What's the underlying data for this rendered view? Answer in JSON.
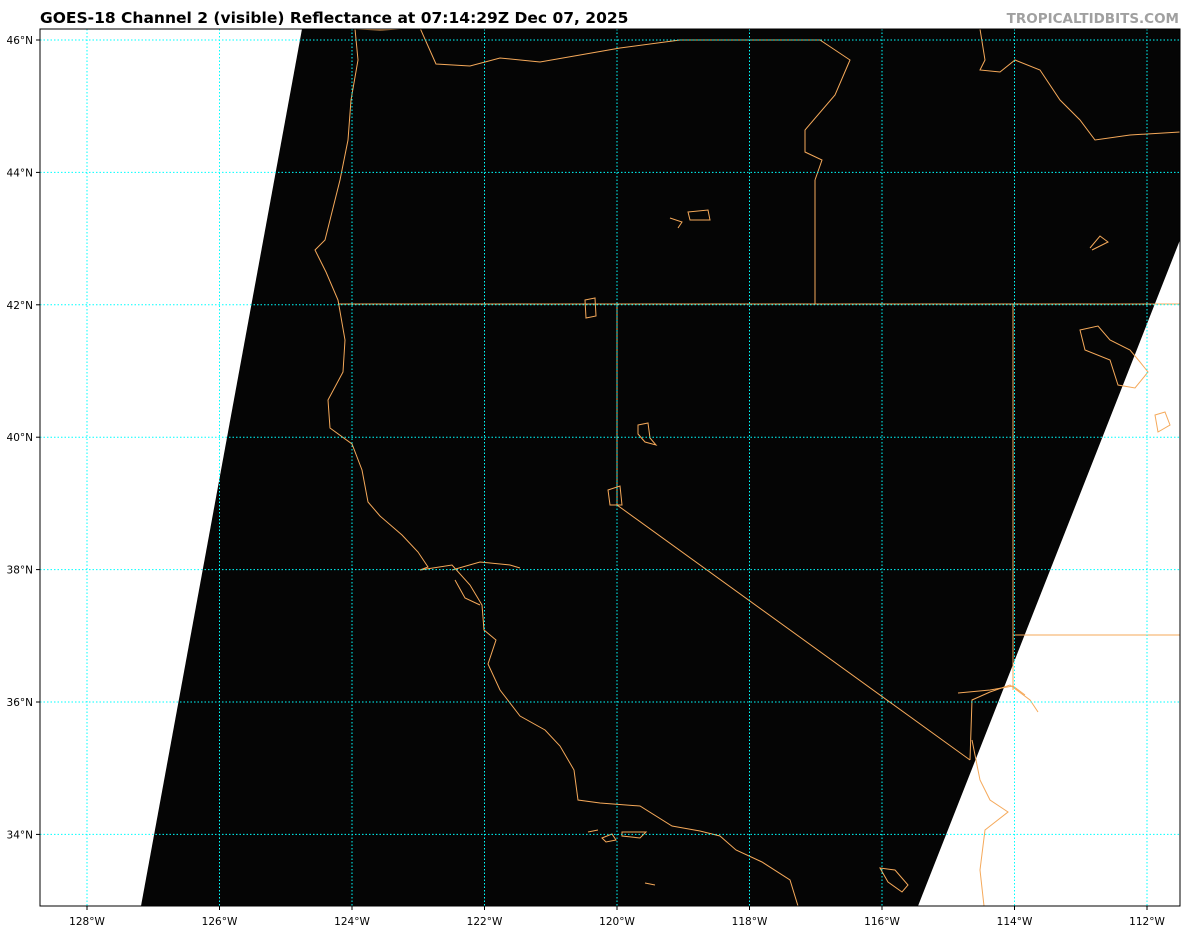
{
  "title": "GOES-18 Channel 2 (visible) Reflectance at 07:14:29Z Dec 07, 2025",
  "watermark": "TROPICALTIDBITS.COM",
  "map": {
    "product": "GOES-18 Channel 2 (visible) Reflectance",
    "lon_labels": [
      "128°W",
      "126°W",
      "124°W",
      "122°W",
      "120°W",
      "118°W",
      "116°W",
      "114°W",
      "112°W"
    ],
    "lat_labels": [
      "46°N",
      "44°N",
      "42°N",
      "40°N",
      "38°N",
      "36°N",
      "34°N"
    ],
    "colors": {
      "gridlines": "#00ffff",
      "coastlines": "#f5a95a",
      "no_data": "#ffffff",
      "imagery": "#050505"
    }
  }
}
